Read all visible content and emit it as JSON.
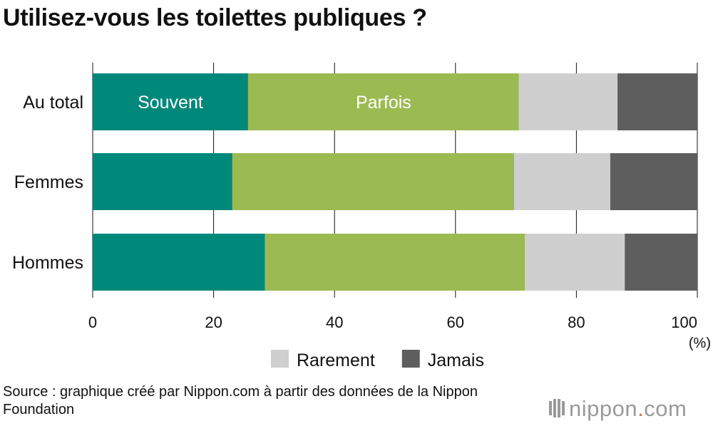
{
  "title": "Utilisez-vous les toilettes publiques ?",
  "chart_data": {
    "type": "bar",
    "orientation": "horizontal",
    "stacked": true,
    "categories": [
      "Au total",
      "Femmes",
      "Hommes"
    ],
    "series": [
      {
        "name": "Souvent",
        "color": "#00897b",
        "values": [
          25.7,
          23.1,
          28.5
        ],
        "label": "Souvent",
        "legend": false
      },
      {
        "name": "Parfois",
        "color": "#9cba52",
        "values": [
          44.8,
          46.6,
          43.0
        ],
        "label": "Parfois",
        "legend": false
      },
      {
        "name": "Rarement",
        "color": "#cfcfcf",
        "values": [
          16.3,
          15.9,
          16.5
        ],
        "legend": true
      },
      {
        "name": "Jamais",
        "color": "#5e5e5e",
        "values": [
          13.2,
          14.4,
          12.0
        ],
        "legend": true
      }
    ],
    "xlim": [
      0,
      100
    ],
    "xticks": [
      "0",
      "20",
      "40",
      "60",
      "80",
      "100"
    ],
    "xunit": "(%)",
    "grid": true,
    "legend_position": "bottom"
  },
  "source": "Source : graphique créé par Nippon.com à partir des données de la Nippon Foundation",
  "logo": {
    "text_main": "nippon",
    "text_dot": ".",
    "text_tail": "com",
    "icon": "nippon-logo-icon"
  }
}
